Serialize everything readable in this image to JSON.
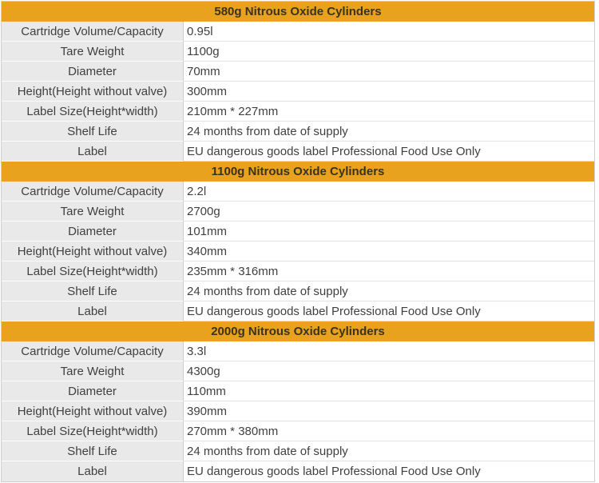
{
  "colors": {
    "section_header_bg": "#E8A21D",
    "section_header_text": "#3A3320",
    "label_column_bg": "#E9E9E9",
    "body_text": "#404040",
    "border": "#CFCFCF"
  },
  "table": {
    "sections": [
      {
        "title": "580g Nitrous Oxide Cylinders",
        "rows": [
          {
            "label": "Cartridge Volume/Capacity",
            "value": "0.95l"
          },
          {
            "label": "Tare Weight",
            "value": "1100g"
          },
          {
            "label": "Diameter",
            "value": "70mm"
          },
          {
            "label": "Height(Height without valve)",
            "value": "300mm"
          },
          {
            "label": "Label Size(Height*width)",
            "value": "210mm * 227mm"
          },
          {
            "label": "Shelf Life",
            "value": "24 months from date of supply"
          },
          {
            "label": "Label",
            "value": "EU dangerous goods label Professional Food Use Only"
          }
        ]
      },
      {
        "title": "1100g Nitrous Oxide Cylinders",
        "rows": [
          {
            "label": "Cartridge Volume/Capacity",
            "value": "2.2l"
          },
          {
            "label": "Tare Weight",
            "value": "2700g"
          },
          {
            "label": "Diameter",
            "value": "101mm"
          },
          {
            "label": "Height(Height without valve)",
            "value": "340mm"
          },
          {
            "label": "Label Size(Height*width)",
            "value": "235mm * 316mm"
          },
          {
            "label": "Shelf Life",
            "value": "24 months from date of supply"
          },
          {
            "label": "Label",
            "value": "EU dangerous goods label Professional Food Use Only"
          }
        ]
      },
      {
        "title": "2000g Nitrous Oxide Cylinders",
        "rows": [
          {
            "label": "Cartridge Volume/Capacity",
            "value": "3.3l"
          },
          {
            "label": "Tare Weight",
            "value": "4300g"
          },
          {
            "label": "Diameter",
            "value": "110mm"
          },
          {
            "label": "Height(Height without valve)",
            "value": "390mm"
          },
          {
            "label": "Label Size(Height*width)",
            "value": "270mm * 380mm"
          },
          {
            "label": "Shelf Life",
            "value": "24 months from date of supply"
          },
          {
            "label": "Label",
            "value": "EU dangerous goods label Professional Food Use Only"
          }
        ]
      }
    ]
  }
}
